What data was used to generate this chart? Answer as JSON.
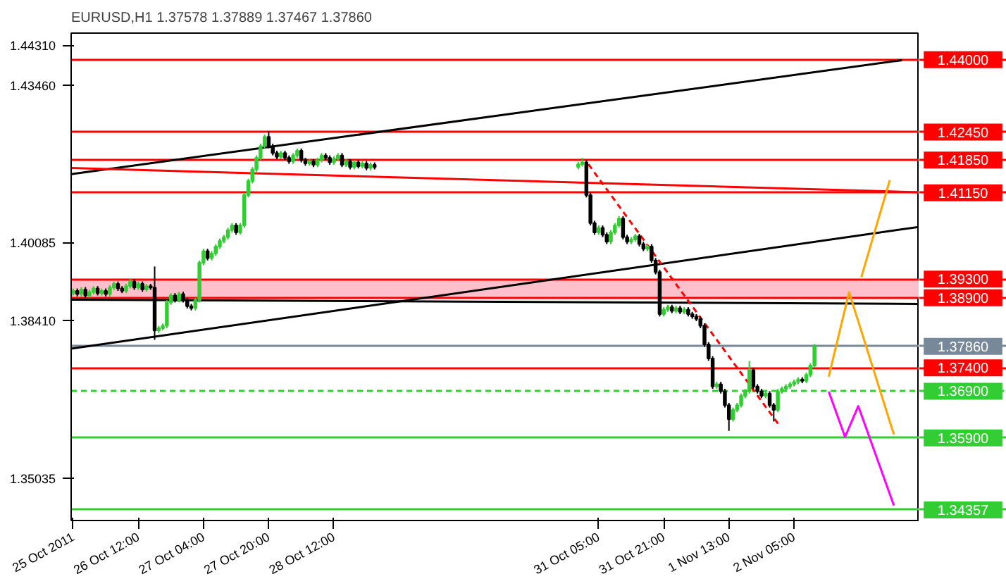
{
  "chart_data": {
    "type": "candlestick",
    "title": "EURUSD,H1  1.37578 1.37889 1.37467 1.37860",
    "x": [
      "2011-10-25T20:00",
      "2011-10-25T21:00",
      "2011-10-25T22:00",
      "2011-10-25T23:00",
      "2011-10-26T00:00",
      "2011-10-26T01:00",
      "2011-10-26T02:00",
      "2011-10-26T03:00",
      "2011-10-26T04:00",
      "2011-10-26T05:00",
      "2011-10-26T06:00",
      "2011-10-26T07:00",
      "2011-10-26T08:00",
      "2011-10-26T09:00",
      "2011-10-26T10:00",
      "2011-10-26T11:00",
      "2011-10-26T12:00",
      "2011-10-26T13:00",
      "2011-10-26T14:00",
      "2011-10-26T15:00",
      "2011-10-26T16:00",
      "2011-10-26T17:00",
      "2011-10-26T18:00",
      "2011-10-26T19:00",
      "2011-10-26T20:00",
      "2011-10-26T21:00",
      "2011-10-26T22:00",
      "2011-10-26T23:00",
      "2011-10-27T00:00",
      "2011-10-27T01:00",
      "2011-10-27T02:00",
      "2011-10-27T03:00",
      "2011-10-27T04:00",
      "2011-10-27T05:00",
      "2011-10-27T06:00",
      "2011-10-27T07:00",
      "2011-10-27T08:00",
      "2011-10-27T09:00",
      "2011-10-27T10:00",
      "2011-10-27T11:00",
      "2011-10-27T12:00",
      "2011-10-27T13:00",
      "2011-10-27T14:00",
      "2011-10-27T15:00",
      "2011-10-27T16:00",
      "2011-10-27T17:00",
      "2011-10-27T18:00",
      "2011-10-27T19:00",
      "2011-10-27T20:00",
      "2011-10-27T21:00",
      "2011-10-27T22:00",
      "2011-10-27T23:00",
      "2011-10-28T00:00",
      "2011-10-28T01:00",
      "2011-10-28T02:00",
      "2011-10-28T03:00",
      "2011-10-28T04:00",
      "2011-10-28T05:00",
      "2011-10-28T06:00",
      "2011-10-28T07:00",
      "2011-10-28T08:00",
      "2011-10-28T09:00",
      "2011-10-28T10:00",
      "2011-10-28T11:00",
      "2011-10-28T12:00",
      "2011-10-28T13:00",
      "2011-10-28T14:00",
      "2011-10-28T15:00",
      "2011-10-28T16:00",
      "2011-10-28T17:00",
      "2011-10-28T18:00",
      "2011-10-28T19:00",
      "2011-10-28T20:00",
      "2011-10-28T21:00",
      "2011-10-28T22:00",
      "2011-10-31T00:00",
      "2011-10-31T01:00",
      "2011-10-31T02:00",
      "2011-10-31T03:00",
      "2011-10-31T04:00",
      "2011-10-31T05:00",
      "2011-10-31T06:00",
      "2011-10-31T07:00",
      "2011-10-31T08:00",
      "2011-10-31T09:00",
      "2011-10-31T10:00",
      "2011-10-31T11:00",
      "2011-10-31T12:00",
      "2011-10-31T13:00",
      "2011-10-31T14:00",
      "2011-10-31T15:00",
      "2011-10-31T16:00",
      "2011-10-31T17:00",
      "2011-10-31T18:00",
      "2011-10-31T19:00",
      "2011-10-31T20:00",
      "2011-10-31T21:00",
      "2011-10-31T22:00",
      "2011-10-31T23:00",
      "2011-11-01T00:00",
      "2011-11-01T01:00",
      "2011-11-01T02:00",
      "2011-11-01T03:00",
      "2011-11-01T04:00",
      "2011-11-01T05:00",
      "2011-11-01T06:00",
      "2011-11-01T07:00",
      "2011-11-01T08:00",
      "2011-11-01T09:00",
      "2011-11-01T10:00",
      "2011-11-01T11:00",
      "2011-11-01T12:00",
      "2011-11-01T13:00",
      "2011-11-01T14:00",
      "2011-11-01T15:00",
      "2011-11-01T16:00",
      "2011-11-01T17:00",
      "2011-11-01T18:00",
      "2011-11-01T19:00",
      "2011-11-01T20:00",
      "2011-11-01T21:00",
      "2011-11-01T22:00",
      "2011-11-01T23:00",
      "2011-11-02T00:00",
      "2011-11-02T01:00",
      "2011-11-02T02:00",
      "2011-11-02T03:00",
      "2011-11-02T04:00",
      "2011-11-02T05:00",
      "2011-11-02T06:00",
      "2011-11-02T07:00",
      "2011-11-02T08:00",
      "2011-11-02T09:00",
      "2011-11-02T10:00"
    ],
    "ohlc": [
      [
        1.39,
        1.391,
        1.3895,
        1.3905
      ],
      [
        1.3905,
        1.391,
        1.3893,
        1.3898
      ],
      [
        1.3898,
        1.3913,
        1.3893,
        1.3908
      ],
      [
        1.3908,
        1.3913,
        1.389,
        1.3895
      ],
      [
        1.3895,
        1.3907,
        1.389,
        1.3902
      ],
      [
        1.3902,
        1.3915,
        1.3897,
        1.391
      ],
      [
        1.391,
        1.3915,
        1.3895,
        1.39
      ],
      [
        1.39,
        1.391,
        1.3895,
        1.3905
      ],
      [
        1.3905,
        1.391,
        1.3893,
        1.3898
      ],
      [
        1.3898,
        1.3917,
        1.3893,
        1.3912
      ],
      [
        1.3912,
        1.3925,
        1.3907,
        1.392
      ],
      [
        1.392,
        1.3925,
        1.3905,
        1.391
      ],
      [
        1.391,
        1.3915,
        1.39,
        1.3905
      ],
      [
        1.3905,
        1.392,
        1.39,
        1.3915
      ],
      [
        1.3915,
        1.393,
        1.391,
        1.3925
      ],
      [
        1.3925,
        1.393,
        1.3907,
        1.3912
      ],
      [
        1.3912,
        1.3925,
        1.3907,
        1.392
      ],
      [
        1.392,
        1.3925,
        1.3903,
        1.3908
      ],
      [
        1.3908,
        1.392,
        1.3903,
        1.3915
      ],
      [
        1.3915,
        1.392,
        1.3907,
        1.3912
      ],
      [
        1.3912,
        1.3957,
        1.38,
        1.382
      ],
      [
        1.382,
        1.383,
        1.3815,
        1.3825
      ],
      [
        1.3825,
        1.3835,
        1.382,
        1.383
      ],
      [
        1.383,
        1.3885,
        1.3825,
        1.388
      ],
      [
        1.388,
        1.39,
        1.3875,
        1.3895
      ],
      [
        1.3895,
        1.39,
        1.388,
        1.3885
      ],
      [
        1.3885,
        1.3903,
        1.388,
        1.3898
      ],
      [
        1.3898,
        1.3903,
        1.388,
        1.3885
      ],
      [
        1.3885,
        1.389,
        1.3867,
        1.3872
      ],
      [
        1.3872,
        1.3877,
        1.3863,
        1.3868
      ],
      [
        1.3868,
        1.389,
        1.3863,
        1.3885
      ],
      [
        1.3885,
        1.397,
        1.388,
        1.3965
      ],
      [
        1.3965,
        1.3995,
        1.396,
        1.399
      ],
      [
        1.399,
        1.3995,
        1.397,
        1.3975
      ],
      [
        1.3975,
        1.399,
        1.397,
        1.3985
      ],
      [
        1.3985,
        1.4005,
        1.398,
        1.4
      ],
      [
        1.4,
        1.4017,
        1.3995,
        1.4012
      ],
      [
        1.4012,
        1.4025,
        1.4007,
        1.402
      ],
      [
        1.402,
        1.404,
        1.4015,
        1.4035
      ],
      [
        1.4035,
        1.405,
        1.403,
        1.4045
      ],
      [
        1.4045,
        1.405,
        1.4025,
        1.403
      ],
      [
        1.403,
        1.405,
        1.4025,
        1.4045
      ],
      [
        1.4045,
        1.4115,
        1.404,
        1.411
      ],
      [
        1.411,
        1.4145,
        1.4105,
        1.414
      ],
      [
        1.414,
        1.417,
        1.4135,
        1.4165
      ],
      [
        1.4165,
        1.4195,
        1.416,
        1.419
      ],
      [
        1.419,
        1.422,
        1.4185,
        1.4215
      ],
      [
        1.4215,
        1.424,
        1.421,
        1.4235
      ],
      [
        1.4235,
        1.4247,
        1.421,
        1.4215
      ],
      [
        1.4215,
        1.422,
        1.4195,
        1.42
      ],
      [
        1.42,
        1.4205,
        1.4187,
        1.4192
      ],
      [
        1.4192,
        1.4205,
        1.4187,
        1.42
      ],
      [
        1.42,
        1.4205,
        1.4185,
        1.419
      ],
      [
        1.419,
        1.4195,
        1.4177,
        1.4182
      ],
      [
        1.4182,
        1.42,
        1.4177,
        1.4195
      ],
      [
        1.4195,
        1.421,
        1.419,
        1.4205
      ],
      [
        1.4205,
        1.421,
        1.418,
        1.4185
      ],
      [
        1.4185,
        1.419,
        1.4173,
        1.4178
      ],
      [
        1.4178,
        1.4187,
        1.4173,
        1.4182
      ],
      [
        1.4182,
        1.4187,
        1.417,
        1.4175
      ],
      [
        1.4175,
        1.419,
        1.417,
        1.4185
      ],
      [
        1.4185,
        1.42,
        1.418,
        1.4195
      ],
      [
        1.4195,
        1.42,
        1.4185,
        1.419
      ],
      [
        1.419,
        1.4195,
        1.4175,
        1.418
      ],
      [
        1.418,
        1.4193,
        1.4175,
        1.4188
      ],
      [
        1.4188,
        1.42,
        1.4183,
        1.4195
      ],
      [
        1.4195,
        1.42,
        1.417,
        1.4175
      ],
      [
        1.4175,
        1.4187,
        1.417,
        1.4182
      ],
      [
        1.4182,
        1.4187,
        1.4165,
        1.417
      ],
      [
        1.417,
        1.4185,
        1.4165,
        1.418
      ],
      [
        1.418,
        1.4185,
        1.4167,
        1.4172
      ],
      [
        1.4172,
        1.4183,
        1.4167,
        1.4178
      ],
      [
        1.4178,
        1.4183,
        1.4163,
        1.4168
      ],
      [
        1.4168,
        1.418,
        1.4163,
        1.4175
      ],
      [
        1.4175,
        1.418,
        1.4165,
        1.417
      ],
      [
        1.417,
        1.4181,
        1.4165,
        1.4176
      ],
      [
        1.4176,
        1.419,
        1.4171,
        1.418
      ],
      [
        1.418,
        1.4185,
        1.4105,
        1.411
      ],
      [
        1.411,
        1.4115,
        1.4045,
        1.405
      ],
      [
        1.405,
        1.4055,
        1.4025,
        1.403
      ],
      [
        1.403,
        1.4045,
        1.4025,
        1.404
      ],
      [
        1.404,
        1.4045,
        1.402,
        1.4025
      ],
      [
        1.4025,
        1.403,
        1.4005,
        1.401
      ],
      [
        1.401,
        1.4035,
        1.4005,
        1.403
      ],
      [
        1.403,
        1.405,
        1.4025,
        1.4045
      ],
      [
        1.4045,
        1.4065,
        1.404,
        1.406
      ],
      [
        1.406,
        1.4065,
        1.4015,
        1.402
      ],
      [
        1.402,
        1.4025,
        1.4005,
        1.401
      ],
      [
        1.401,
        1.402,
        1.4005,
        1.4015
      ],
      [
        1.4015,
        1.4027,
        1.401,
        1.4022
      ],
      [
        1.4022,
        1.4027,
        1.4,
        1.4005
      ],
      [
        1.4005,
        1.401,
        1.399,
        1.3995
      ],
      [
        1.3995,
        1.4005,
        1.399,
        1.4
      ],
      [
        1.4,
        1.4005,
        1.3965,
        1.397
      ],
      [
        1.397,
        1.3975,
        1.394,
        1.3945
      ],
      [
        1.3945,
        1.395,
        1.385,
        1.3855
      ],
      [
        1.3855,
        1.387,
        1.385,
        1.3865
      ],
      [
        1.3865,
        1.3875,
        1.386,
        1.387
      ],
      [
        1.387,
        1.3875,
        1.3857,
        1.3862
      ],
      [
        1.3862,
        1.3873,
        1.3857,
        1.3868
      ],
      [
        1.3868,
        1.3873,
        1.3855,
        1.386
      ],
      [
        1.386,
        1.387,
        1.3855,
        1.3865
      ],
      [
        1.3865,
        1.387,
        1.385,
        1.3855
      ],
      [
        1.3855,
        1.386,
        1.3845,
        1.385
      ],
      [
        1.385,
        1.3855,
        1.384,
        1.3845
      ],
      [
        1.3845,
        1.385,
        1.3825,
        1.383
      ],
      [
        1.383,
        1.3835,
        1.3785,
        1.379
      ],
      [
        1.379,
        1.3795,
        1.3755,
        1.376
      ],
      [
        1.376,
        1.3765,
        1.3695,
        1.37
      ],
      [
        1.37,
        1.371,
        1.3695,
        1.3705
      ],
      [
        1.3705,
        1.371,
        1.3685,
        1.369
      ],
      [
        1.369,
        1.3695,
        1.3655,
        1.366
      ],
      [
        1.366,
        1.3665,
        1.3605,
        1.363
      ],
      [
        1.363,
        1.3655,
        1.3625,
        1.365
      ],
      [
        1.365,
        1.3665,
        1.3645,
        1.366
      ],
      [
        1.366,
        1.3685,
        1.3655,
        1.368
      ],
      [
        1.368,
        1.3695,
        1.3675,
        1.369
      ],
      [
        1.369,
        1.3755,
        1.3685,
        1.3735
      ],
      [
        1.3735,
        1.374,
        1.3695,
        1.37
      ],
      [
        1.37,
        1.3705,
        1.3685,
        1.369
      ],
      [
        1.369,
        1.3695,
        1.3675,
        1.368
      ],
      [
        1.368,
        1.369,
        1.3675,
        1.3685
      ],
      [
        1.3685,
        1.369,
        1.3655,
        1.366
      ],
      [
        1.366,
        1.3665,
        1.3625,
        1.365
      ],
      [
        1.365,
        1.3695,
        1.3645,
        1.369
      ],
      [
        1.369,
        1.37,
        1.3685,
        1.3695
      ],
      [
        1.3695,
        1.3705,
        1.369,
        1.37
      ],
      [
        1.37,
        1.371,
        1.3695,
        1.3705
      ],
      [
        1.3705,
        1.3715,
        1.37,
        1.371
      ],
      [
        1.371,
        1.372,
        1.3705,
        1.3715
      ],
      [
        1.3715,
        1.372,
        1.3707,
        1.3712
      ],
      [
        1.3712,
        1.373,
        1.3707,
        1.3725
      ],
      [
        1.3725,
        1.375,
        1.372,
        1.3745
      ],
      [
        1.3745,
        1.3791,
        1.374,
        1.3786
      ]
    ],
    "series": [
      {
        "type": "line",
        "x": [
          "2011-10-25T19:30",
          "2011-11-03T07:30"
        ],
        "values": [
          1.4155,
          1.4399
        ],
        "color": "#000000",
        "line_style": "solid"
      },
      {
        "type": "line",
        "x": [
          "2011-10-25T19:30",
          "2011-11-03T11:45"
        ],
        "values": [
          1.3781,
          1.4042
        ],
        "color": "#000000",
        "line_style": "solid"
      },
      {
        "type": "line",
        "x": [
          "2011-10-25T19:30",
          "2011-11-03T11:45"
        ],
        "values": [
          1.3886,
          1.3877
        ],
        "color": "#000000",
        "line_style": "solid"
      },
      {
        "type": "line",
        "x": [
          "2011-10-25T19:30",
          "2011-11-03T11:45"
        ],
        "values": [
          1.4168,
          1.4116
        ],
        "color": "#ff0000",
        "line_style": "solid"
      },
      {
        "type": "line",
        "x": [
          "2011-10-31T02:30",
          "2011-11-02T01:15"
        ],
        "values": [
          1.4176,
          1.3618
        ],
        "color": "#ff0000",
        "line_style": "dashed"
      },
      {
        "type": "line",
        "x": [
          "2011-11-02T13:30",
          "2011-11-02T18:30",
          "2011-11-03T05:30"
        ],
        "values": [
          1.3721,
          1.3902,
          1.3597
        ],
        "color": "#ffa500",
        "line_style": "solid"
      },
      {
        "type": "line",
        "x": [
          "2011-11-02T21:30",
          "2011-11-03T04:30"
        ],
        "values": [
          1.3934,
          1.4142
        ],
        "color": "#ffa500",
        "line_style": "solid"
      },
      {
        "type": "line",
        "x": [
          "2011-11-02T13:30",
          "2011-11-02T17:30",
          "2011-11-02T20:45",
          "2011-11-03T05:30"
        ],
        "values": [
          1.3689,
          1.3592,
          1.3658,
          1.3445
        ],
        "color": "#ff00ff",
        "line_style": "solid"
      }
    ],
    "ref_lines": [
      {
        "axis": "y",
        "value": 1.44,
        "label": "1.44000",
        "color": "#ff0000"
      },
      {
        "axis": "y",
        "value": 1.4245,
        "label": "1.42450",
        "color": "#ff0000"
      },
      {
        "axis": "y",
        "value": 1.4185,
        "label": "1.41850",
        "color": "#ff0000"
      },
      {
        "axis": "y",
        "value": 1.4115,
        "label": "1.41150",
        "color": "#ff0000"
      },
      {
        "axis": "y",
        "value": 1.393,
        "label": "1.39300",
        "color": "#ff0000"
      },
      {
        "axis": "y",
        "value": 1.389,
        "label": "1.38900",
        "color": "#ff0000"
      },
      {
        "axis": "y",
        "value": 1.3786,
        "label": "1.37860",
        "color": "#778899"
      },
      {
        "axis": "y",
        "value": 1.374,
        "label": "1.37400",
        "color": "#ff0000"
      },
      {
        "axis": "y",
        "value": 1.369,
        "label": "1.36900",
        "color": "#32cd32",
        "line_style": "dashed"
      },
      {
        "axis": "y",
        "value": 1.359,
        "label": "1.35900",
        "color": "#32cd32"
      },
      {
        "axis": "y",
        "value": 1.34357,
        "label": "1.34357",
        "color": "#32cd32"
      }
    ],
    "bands": [
      {
        "axis": "y",
        "from": 1.389,
        "to": 1.393,
        "color": "#ffc0cb"
      }
    ],
    "xlim": [
      "2011-10-25T19:30",
      "2011-11-03T11:45"
    ],
    "ylim": [
      1.3413,
      1.4457
    ],
    "xticks": [
      {
        "value": "2011-10-25T20:00",
        "label": "25 Oct 2011"
      },
      {
        "value": "2011-10-26T12:00",
        "label": "26 Oct 12:00"
      },
      {
        "value": "2011-10-27T04:00",
        "label": "27 Oct 04:00"
      },
      {
        "value": "2011-10-27T20:00",
        "label": "27 Oct 20:00"
      },
      {
        "value": "2011-10-28T12:00",
        "label": "28 Oct 12:00"
      },
      {
        "value": "2011-10-31T05:00",
        "label": "31 Oct 05:00"
      },
      {
        "value": "2011-10-31T21:00",
        "label": "31 Oct 21:00"
      },
      {
        "value": "2011-11-01T13:00",
        "label": "1 Nov 13:00"
      },
      {
        "value": "2011-11-02T05:00",
        "label": "2 Nov 05:00"
      }
    ],
    "yticks": [
      {
        "value": 1.4431,
        "label": "1.44310"
      },
      {
        "value": 1.4346,
        "label": "1.43460"
      },
      {
        "value": 1.40085,
        "label": "1.40085"
      },
      {
        "value": 1.3841,
        "label": "1.38410"
      },
      {
        "value": 1.35035,
        "label": "1.35035"
      }
    ],
    "grid": false
  }
}
